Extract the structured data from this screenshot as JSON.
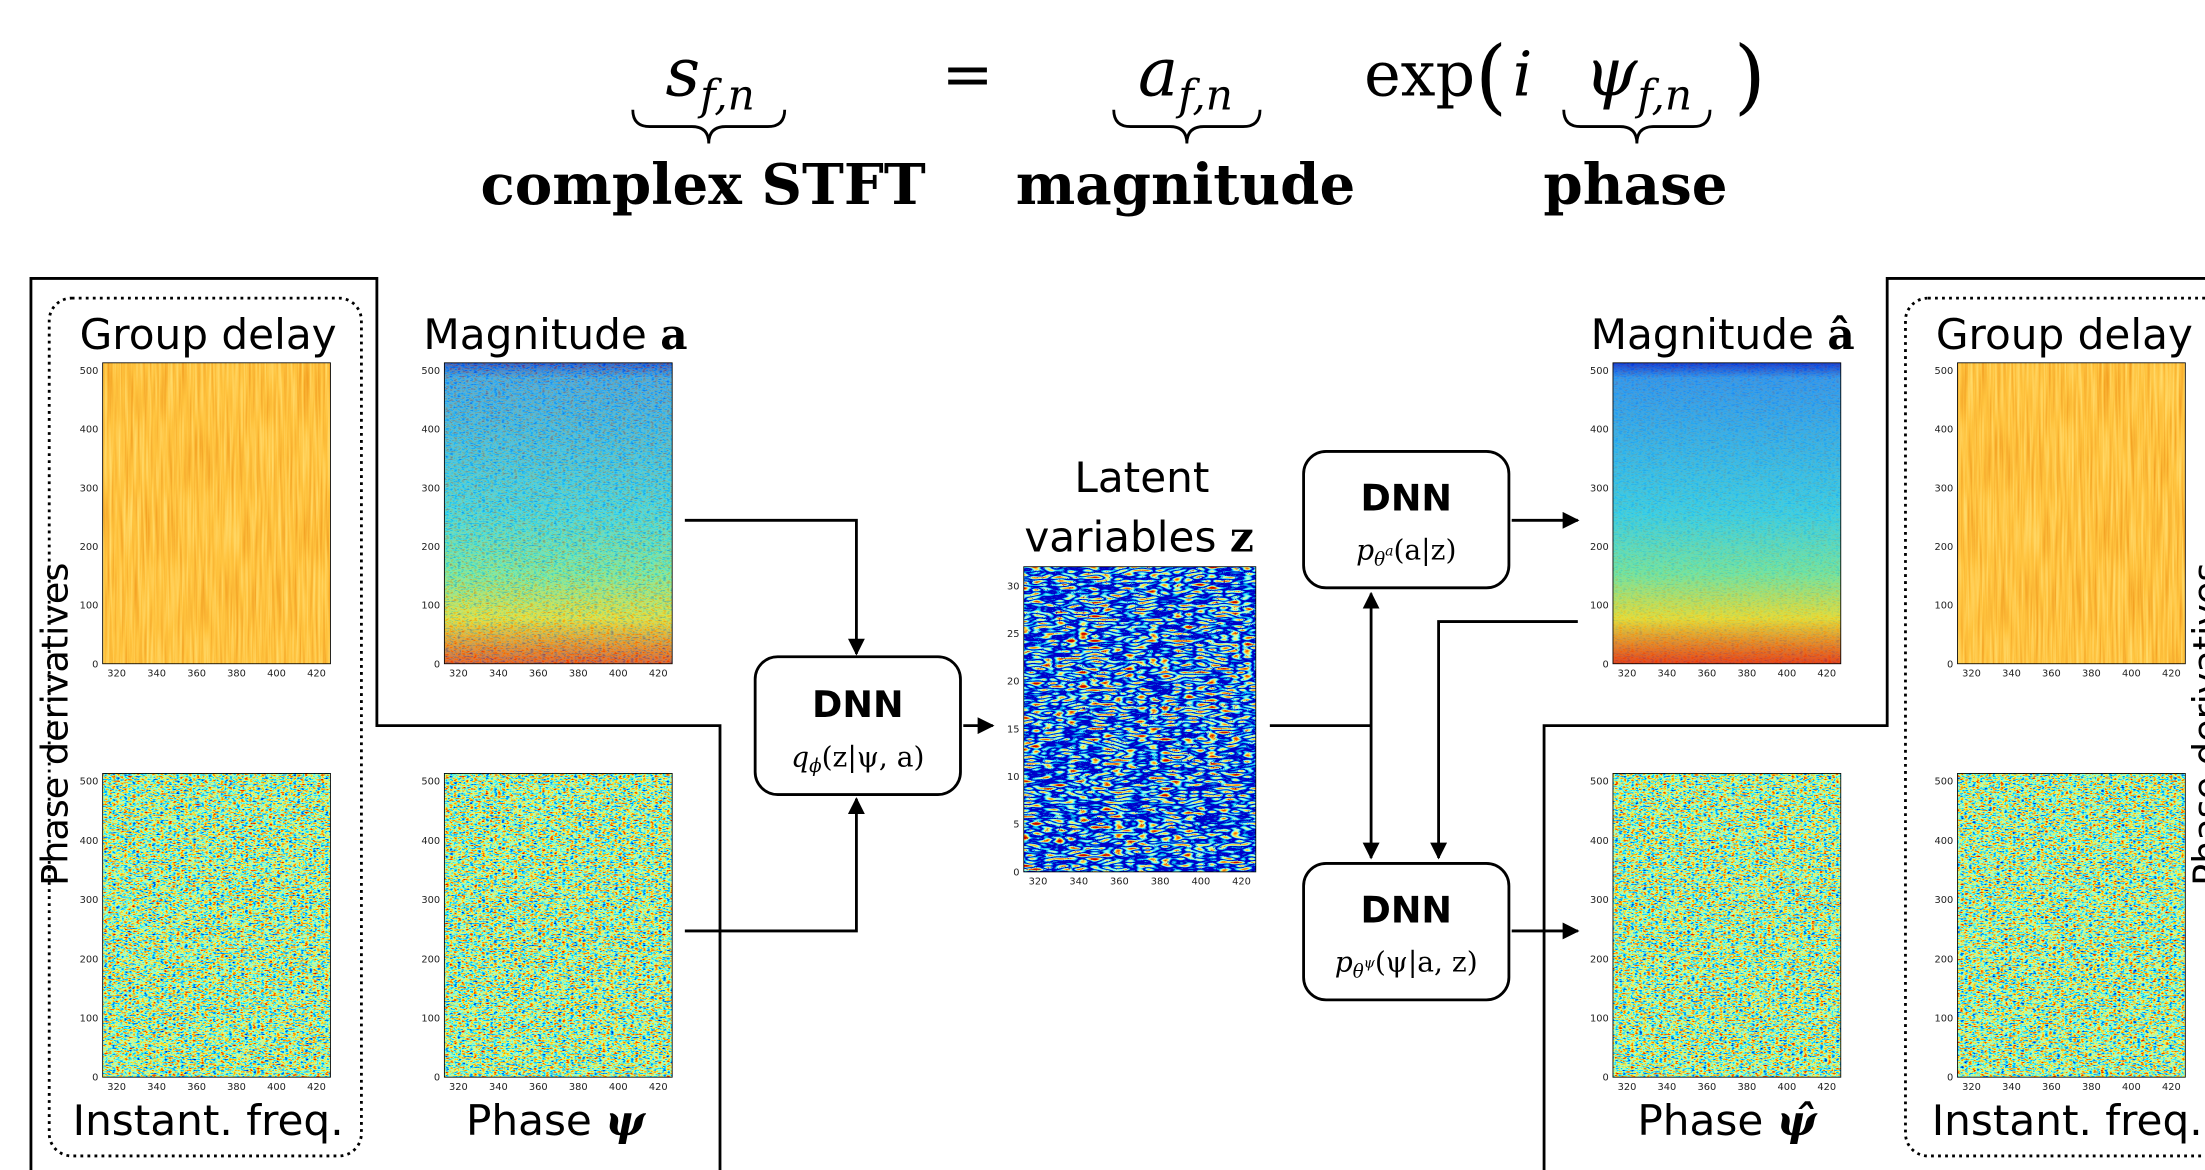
{
  "equation": {
    "lhs": {
      "symbol": "s",
      "sub": "f,n",
      "label": "complex STFT"
    },
    "equals": "=",
    "magnitude": {
      "symbol": "a",
      "sub": "f,n",
      "label": "magnitude"
    },
    "exp": "exp",
    "open": "(",
    "i": "i",
    "phase": {
      "symbol": "ψ",
      "sub": "f,n",
      "label": "phase"
    },
    "close": ")"
  },
  "left_group": {
    "side_label": "Phase derivatives",
    "top": "Group delay",
    "bottom": "Instant. freq."
  },
  "inputs": {
    "magnitude": "Magnitude",
    "magnitude_symbol": "a",
    "phase": "Phase",
    "phase_symbol": "ψ"
  },
  "encoder": {
    "title": "DNN",
    "f": "q",
    "sub": "ϕ",
    "args": "(z|ψ, a)"
  },
  "latent": {
    "line1": "Latent",
    "line2": "variables",
    "symbol": "z"
  },
  "decoder_a": {
    "title": "DNN",
    "f": "p",
    "sub": "θ",
    "subsup": "a",
    "args": "(a|z)"
  },
  "decoder_psi": {
    "title": "DNN",
    "f": "p",
    "sub": "θ",
    "subsup": "ψ",
    "args": "(ψ|a, z)"
  },
  "outputs": {
    "magnitude": "Magnitude",
    "magnitude_symbol": "â",
    "phase": "Phase",
    "phase_symbol": "ψ̂"
  },
  "right_group": {
    "side_label": "Phase derivatives",
    "top": "Group delay",
    "bottom": "Instant. freq."
  },
  "axes": {
    "spectrogram_x_ticks": [
      320,
      340,
      360,
      380,
      400,
      420
    ],
    "spectrogram_y_ticks": [
      0,
      100,
      200,
      300,
      400,
      500
    ],
    "latent_y_ticks": [
      0,
      5,
      10,
      15,
      20,
      25,
      30
    ]
  }
}
